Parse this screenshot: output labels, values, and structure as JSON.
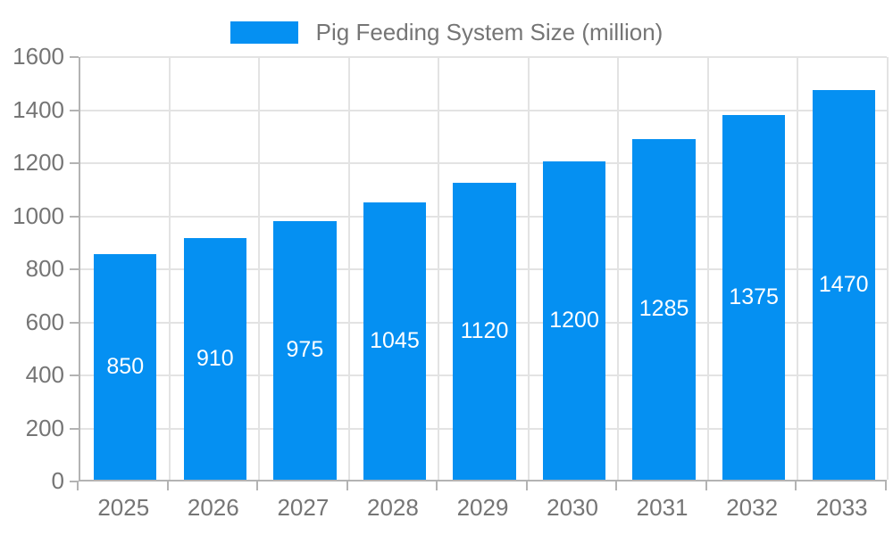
{
  "chart_data": {
    "type": "bar",
    "title": "Pig Feeding System Size (million)",
    "categories": [
      "2025",
      "2026",
      "2027",
      "2028",
      "2029",
      "2030",
      "2031",
      "2032",
      "2033"
    ],
    "values": [
      850,
      910,
      975,
      1045,
      1120,
      1200,
      1285,
      1375,
      1470
    ],
    "xlabel": "",
    "ylabel": "",
    "ylim": [
      0,
      1600
    ],
    "yticks": [
      0,
      200,
      400,
      600,
      800,
      1000,
      1200,
      1400,
      1600
    ],
    "grid": true,
    "legend_position": "top-center",
    "value_labels": "inside-center",
    "colors": {
      "bar": "#0590F2",
      "value_label": "#ffffff",
      "axis_text": "#757575",
      "grid_line": "#e3e3e3",
      "axis_line": "#b3b3b3",
      "background": "#ffffff"
    }
  }
}
